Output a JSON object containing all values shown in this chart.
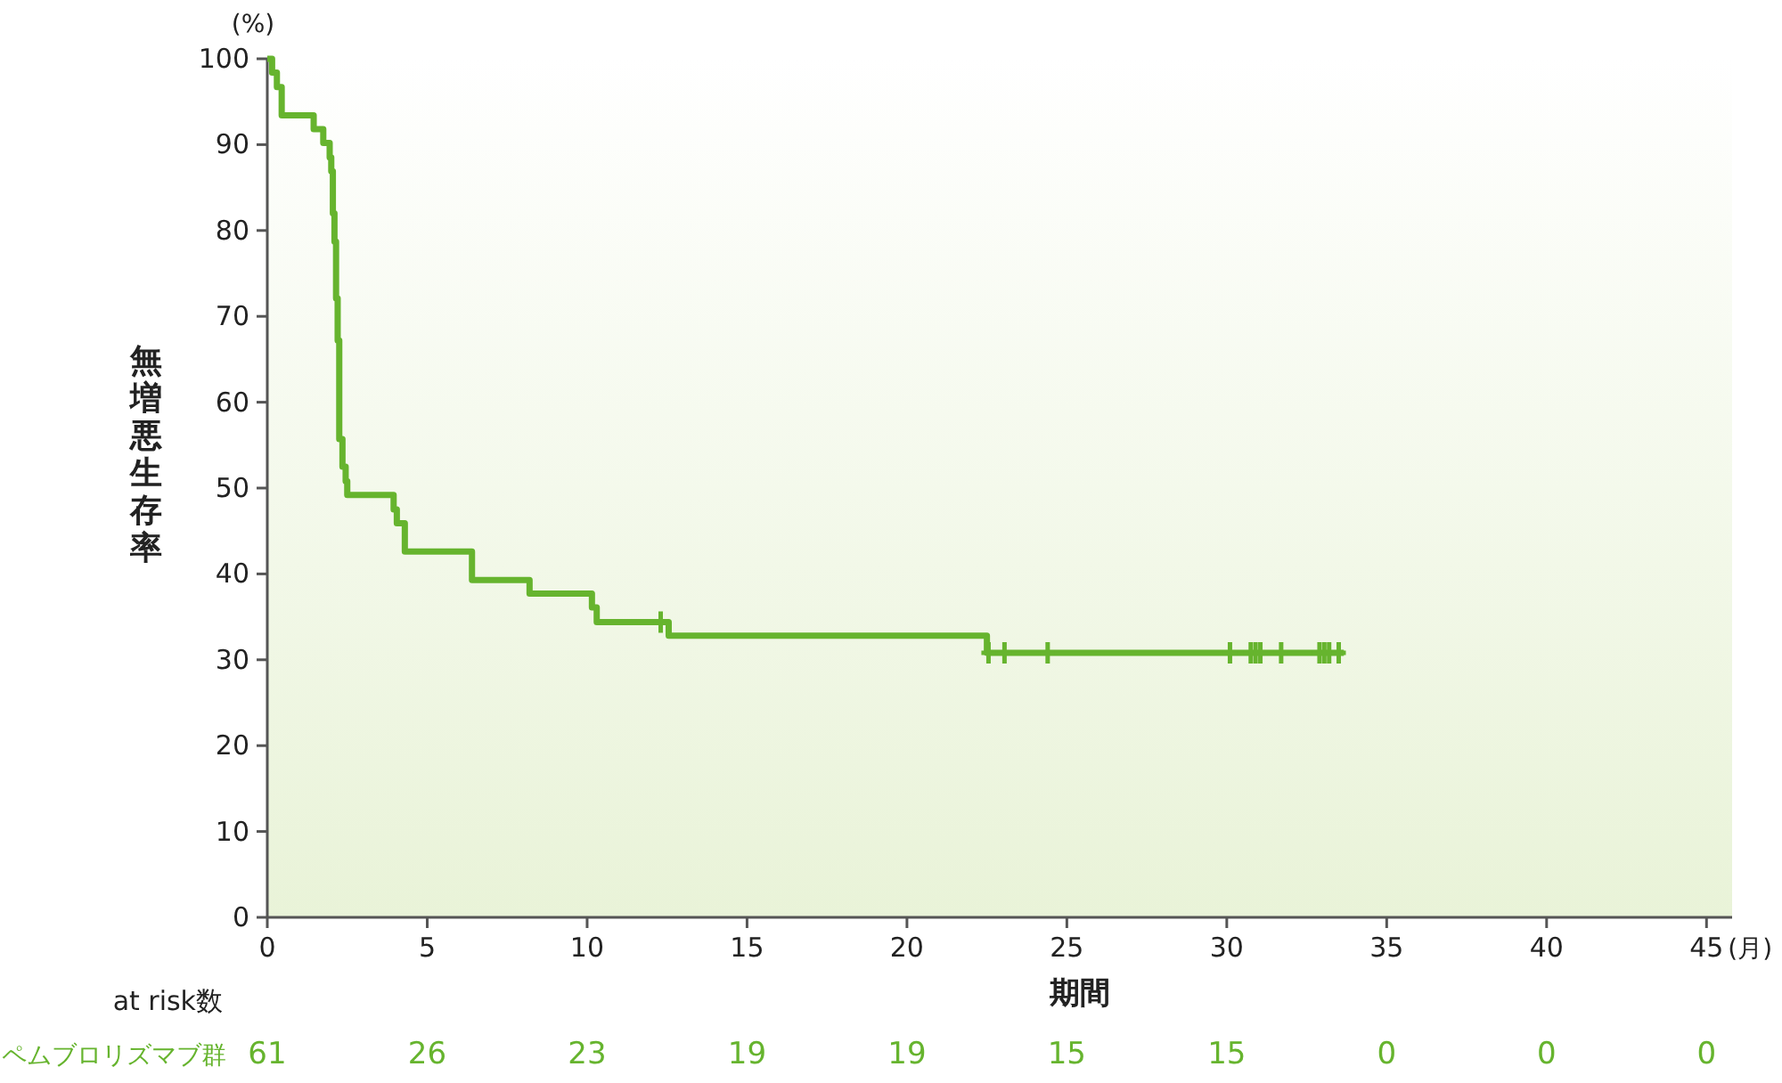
{
  "chart_data": {
    "type": "step",
    "xlabel": "期間",
    "ylabel": "無増悪生存率",
    "xlim": [
      0,
      45.8
    ],
    "xticks": [
      0,
      5,
      10,
      15,
      20,
      25,
      30,
      35,
      40,
      45
    ],
    "ylim": [
      0,
      100
    ],
    "yticks": [
      0,
      10,
      20,
      30,
      40,
      50,
      60,
      70,
      80,
      90,
      100
    ],
    "grid": false,
    "series": [
      {
        "type": "step",
        "color": "#66b42e",
        "marker": "none",
        "x": [
          0,
          0.15,
          0.3,
          0.45,
          1.45,
          1.75,
          1.95,
          2.0,
          2.05,
          2.1,
          2.15,
          2.2,
          2.25,
          2.35,
          2.45,
          2.5,
          3.95,
          4.05,
          4.3,
          6.4,
          8.2,
          10.15,
          10.3,
          12.55,
          22.5,
          33.66
        ],
        "values": [
          100,
          98.4,
          96.7,
          93.4,
          91.8,
          90.2,
          88.5,
          86.9,
          82,
          78.7,
          72.1,
          67.2,
          55.7,
          52.5,
          50.8,
          49.2,
          47.5,
          45.9,
          42.6,
          39.3,
          37.7,
          36.1,
          34.4,
          32.8,
          30.8,
          30.8
        ]
      },
      {
        "type": "scatter",
        "color": "#66b42e",
        "marker": "cross",
        "x": [
          12.3,
          22.55,
          23.05,
          24.4,
          30.1,
          30.75,
          30.9,
          31.05,
          31.7,
          32.9,
          33.05,
          33.2,
          33.5
        ],
        "values": [
          34.4,
          30.8,
          30.8,
          30.8,
          30.8,
          30.8,
          30.8,
          30.8,
          30.8,
          30.8,
          30.8,
          30.8,
          30.8
        ]
      }
    ],
    "annotations": [
      "(%)",
      "(月)",
      "at risk数",
      "ペムブロリズマブ群",
      "61",
      "26",
      "23",
      "19",
      "19",
      "15",
      "15",
      "0",
      "0",
      "0"
    ]
  }
}
